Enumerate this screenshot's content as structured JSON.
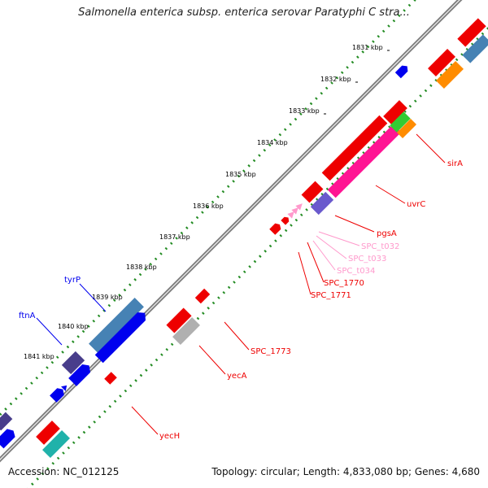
{
  "title": "Salmonella enterica subsp. enterica serovar Paratyphi C stra...",
  "accession": "Accession: NC_012125",
  "summary": "Topology: circular; Length: 4,833,080 bp; Genes: 4,680",
  "ticks": [
    "1831 kbp",
    "1832 kbp",
    "1833 kbp",
    "1834 kbp",
    "1835 kbp",
    "1836 kbp",
    "1837 kbp",
    "1838 kbp",
    "1839 kbp",
    "1840 kbp",
    "1841 kbp"
  ],
  "genes": {
    "sirA": "sirA",
    "uvrC": "uvrC",
    "pgsA": "pgsA",
    "SPC_t032": "SPC_t032",
    "SPC_t033": "SPC_t033",
    "SPC_t034": "SPC_t034",
    "SPC_1770": "SPC_1770",
    "SPC_1771": "SPC_1771",
    "SPC_1773": "SPC_1773",
    "yecA": "yecA",
    "yecH": "yecH",
    "tyrP": "tyrP",
    "ftnA": "ftnA"
  },
  "colors": {
    "red": "#ee0000",
    "blue": "#0000ee",
    "steel": "#4682b4",
    "slate": "#483d8b",
    "pink": "#ff1493",
    "lightpink": "#ff99cc",
    "orange": "#ff8c00",
    "green": "#33cc33",
    "gray": "#b0b0b0",
    "cyan": "#20b2aa",
    "backbone": "#808080",
    "dots": "#228b22"
  }
}
